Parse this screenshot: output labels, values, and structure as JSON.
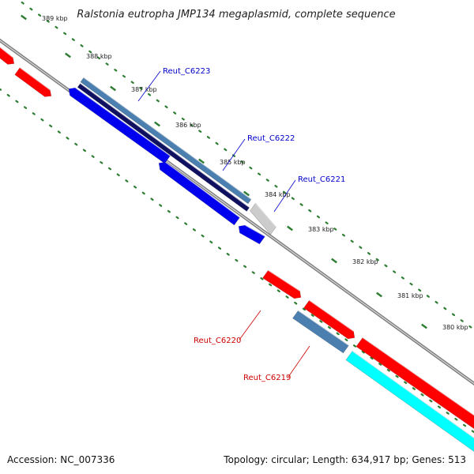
{
  "title": "Ralstonia eutropha JMP134 megaplasmid, complete sequence",
  "footer": {
    "accession": "Accession: NC_007336",
    "summary": "Topology: circular; Length: 634,917 bp; Genes: 513"
  },
  "colors": {
    "background": "#ffffff",
    "backbone": "#808080",
    "tick_dots": "#2e7d32",
    "forward_gene": "#ff0000",
    "reverse_gene": "#0000ee",
    "reverse_dark": "#101060",
    "steel": "#4a7fb0",
    "cyan": "#00ffff",
    "gray_feature": "#cccccc",
    "label_blue": "#0000cc",
    "label_red": "#cc0000"
  },
  "ticks": [
    {
      "label": "389 kbp"
    },
    {
      "label": "388 kbp"
    },
    {
      "label": "387 kbp"
    },
    {
      "label": "386 kbp"
    },
    {
      "label": "385 kbp"
    },
    {
      "label": "384 kbp"
    },
    {
      "label": "383 kbp"
    },
    {
      "label": "382 kbp"
    },
    {
      "label": "381 kbp"
    },
    {
      "label": "380 kbp"
    }
  ],
  "gene_labels": [
    {
      "name": "Reut_C6223",
      "strand": "reverse"
    },
    {
      "name": "Reut_C6222",
      "strand": "reverse"
    },
    {
      "name": "Reut_C6221",
      "strand": "reverse"
    },
    {
      "name": "Reut_C6220",
      "strand": "forward"
    },
    {
      "name": "Reut_C6219",
      "strand": "forward"
    }
  ]
}
